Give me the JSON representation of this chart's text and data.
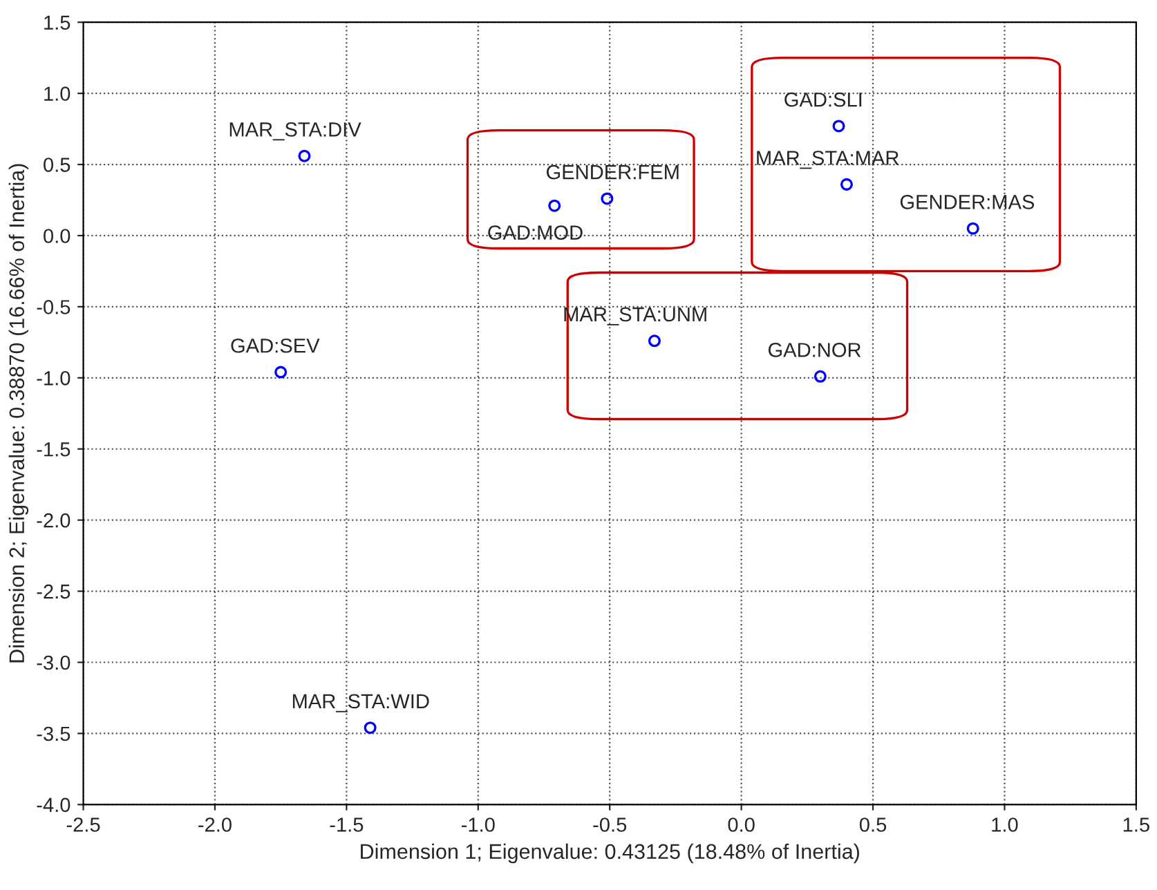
{
  "chart_data": {
    "type": "scatter",
    "xlabel": "Dimension 1; Eigenvalue: 0.43125 (18.48% of Inertia)",
    "ylabel": "Dimension 2; Eigenvalue: 0.38870 (16.66% of Inertia)",
    "series": [
      {
        "color": "#0000ff",
        "x": [
          -1.66,
          -1.75,
          -1.41,
          -0.71,
          -0.51,
          -0.33,
          0.3,
          0.37,
          0.4,
          0.88
        ],
        "values": [
          0.56,
          -0.96,
          -3.46,
          0.21,
          0.26,
          -0.74,
          -0.99,
          0.77,
          0.36,
          0.05
        ]
      }
    ],
    "annotations": [
      {
        "text": "MAR_STA:DIV",
        "x": -1.66,
        "y": 0.56
      },
      {
        "text": "GAD:SEV",
        "x": -1.75,
        "y": -0.96
      },
      {
        "text": "MAR_STA:WID",
        "x": -1.41,
        "y": -3.46
      },
      {
        "text": "GAD:MOD",
        "x": -0.71,
        "y": 0.21
      },
      {
        "text": "GENDER:FEM",
        "x": -0.51,
        "y": 0.26
      },
      {
        "text": "MAR_STA:UNM",
        "x": -0.33,
        "y": -0.74
      },
      {
        "text": "GAD:NOR",
        "x": 0.3,
        "y": -0.99
      },
      {
        "text": "GAD:SLI",
        "x": 0.37,
        "y": 0.77
      },
      {
        "text": "MAR_STA:MAR",
        "x": 0.4,
        "y": 0.36
      },
      {
        "text": "GENDER:MAS",
        "x": 0.88,
        "y": 0.05
      }
    ],
    "xlim": [
      -2.5,
      1.5
    ],
    "xticks": [
      -2.5,
      {
        "value": -2,
        "label": "-2.0"
      },
      -1.5,
      {
        "value": -1,
        "label": "-1.0"
      },
      -0.5,
      {
        "value": 0,
        "label": "0.0"
      },
      0.5,
      {
        "value": 1,
        "label": "1.0"
      },
      1.5
    ],
    "ylim": [
      -4.0,
      1.5
    ],
    "yticks": [
      {
        "value": -4,
        "label": "-4.0"
      },
      -3.5,
      {
        "value": -3,
        "label": "-3.0"
      },
      -2.5,
      {
        "value": -2,
        "label": "-2.0"
      },
      -1.5,
      {
        "value": -1,
        "label": "-1.0"
      },
      -0.5,
      {
        "value": 0,
        "label": "0.0"
      },
      0.5,
      {
        "value": 1,
        "label": "1.0"
      },
      1.5
    ],
    "grid": true,
    "marker": "circle"
  }
}
